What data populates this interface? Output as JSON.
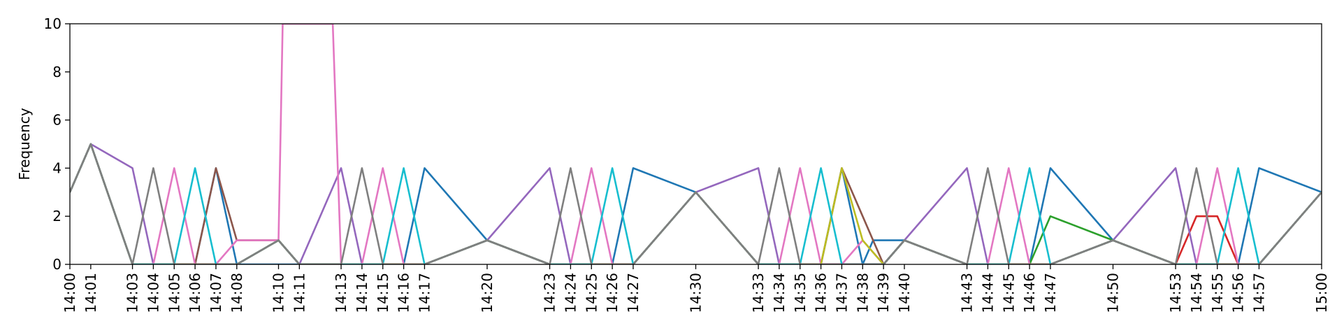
{
  "chart_data": {
    "type": "line",
    "title": "",
    "xlabel": "",
    "ylabel": "Frequency",
    "ylim": [
      0,
      10
    ],
    "y_ticks": [
      0,
      2,
      4,
      6,
      8,
      10
    ],
    "x_range": [
      "14:00",
      "15:00"
    ],
    "x_ticks": [
      "14:00",
      "14:01",
      "14:03",
      "14:04",
      "14:05",
      "14:06",
      "14:07",
      "14:08",
      "14:10",
      "14:11",
      "14:13",
      "14:14",
      "14:15",
      "14:16",
      "14:17",
      "14:20",
      "14:23",
      "14:24",
      "14:25",
      "14:26",
      "14:27",
      "14:30",
      "14:33",
      "14:34",
      "14:35",
      "14:36",
      "14:37",
      "14:38",
      "14:39",
      "14:40",
      "14:43",
      "14:44",
      "14:45",
      "14:46",
      "14:47",
      "14:50",
      "14:53",
      "14:54",
      "14:55",
      "14:56",
      "14:57",
      "15:00"
    ],
    "grid": false,
    "legend": "none",
    "series": [
      {
        "color": "#1f77b4",
        "x": [
          "14:00",
          "14:01",
          "14:03",
          "14:04",
          "14:05",
          "14:06",
          "14:07",
          "14:08",
          "14:10",
          "14:11",
          "14:13",
          "14:14",
          "14:15",
          "14:16",
          "14:17",
          "14:20",
          "14:23",
          "14:24",
          "14:25",
          "14:26",
          "14:27",
          "14:30",
          "14:33",
          "14:34",
          "14:35",
          "14:36",
          "14:37",
          "14:38",
          "14:38.5",
          "14:39",
          "14:40",
          "14:43",
          "14:44",
          "14:45",
          "14:46",
          "14:47",
          "14:50",
          "14:53",
          "14:54",
          "14:55",
          "14:56",
          "14:57",
          "15:00"
        ],
        "y": [
          3,
          5,
          0,
          0,
          0,
          0,
          4,
          0,
          0,
          0,
          0,
          0,
          0,
          0,
          4,
          1,
          0,
          0,
          0,
          0,
          4,
          3,
          0,
          0,
          0,
          0,
          4,
          0,
          1,
          1,
          1,
          0,
          0,
          0,
          0,
          4,
          1,
          0,
          0,
          0,
          0,
          4,
          3
        ]
      },
      {
        "color": "#ff7f0e",
        "x": [
          "14:00",
          "14:01",
          "14:03",
          "14:04",
          "14:05",
          "14:06",
          "14:07",
          "14:08",
          "14:10",
          "14:11",
          "14:13",
          "14:14",
          "14:15",
          "14:16",
          "14:17",
          "14:20",
          "14:23",
          "14:24",
          "14:25",
          "14:26",
          "14:27",
          "14:30",
          "14:33",
          "14:34",
          "14:35",
          "14:36",
          "14:37",
          "14:38",
          "14:39",
          "14:40",
          "14:43",
          "14:44",
          "14:45",
          "14:46",
          "14:47",
          "14:50",
          "14:53",
          "14:54",
          "14:55",
          "14:56",
          "14:57",
          "15:00"
        ],
        "y": [
          3,
          5,
          0,
          0,
          0,
          0,
          0,
          0,
          1,
          0,
          0,
          0,
          0,
          0,
          0,
          1,
          0,
          0,
          0,
          0,
          0,
          3,
          0,
          0,
          0,
          0,
          0,
          0,
          0,
          1,
          0,
          0,
          0,
          0,
          0,
          1,
          0,
          0,
          0,
          0,
          0,
          3
        ]
      },
      {
        "color": "#2ca02c",
        "x": [
          "14:00",
          "14:01",
          "14:03",
          "14:04",
          "14:05",
          "14:06",
          "14:07",
          "14:08",
          "14:10",
          "14:11",
          "14:13",
          "14:14",
          "14:15",
          "14:16",
          "14:17",
          "14:20",
          "14:23",
          "14:24",
          "14:25",
          "14:26",
          "14:27",
          "14:30",
          "14:33",
          "14:34",
          "14:35",
          "14:36",
          "14:37",
          "14:38",
          "14:39",
          "14:40",
          "14:43",
          "14:44",
          "14:45",
          "14:46",
          "14:47",
          "14:50",
          "14:53",
          "14:54",
          "14:55",
          "14:56",
          "14:57",
          "15:00"
        ],
        "y": [
          3,
          5,
          0,
          0,
          0,
          0,
          0,
          0,
          1,
          0,
          0,
          0,
          0,
          0,
          0,
          1,
          0,
          0,
          0,
          0,
          0,
          3,
          0,
          0,
          0,
          0,
          0,
          0,
          0,
          1,
          0,
          0,
          0,
          0,
          2,
          1,
          0,
          0,
          0,
          0,
          0,
          3
        ]
      },
      {
        "color": "#d62728",
        "x": [
          "14:00",
          "14:01",
          "14:03",
          "14:04",
          "14:05",
          "14:06",
          "14:07",
          "14:08",
          "14:10",
          "14:11",
          "14:13",
          "14:14",
          "14:15",
          "14:16",
          "14:17",
          "14:20",
          "14:23",
          "14:24",
          "14:25",
          "14:26",
          "14:27",
          "14:30",
          "14:33",
          "14:34",
          "14:35",
          "14:36",
          "14:37",
          "14:38",
          "14:39",
          "14:40",
          "14:43",
          "14:44",
          "14:45",
          "14:46",
          "14:47",
          "14:50",
          "14:53",
          "14:54",
          "14:55",
          "14:56",
          "14:57",
          "15:00"
        ],
        "y": [
          3,
          5,
          0,
          0,
          0,
          0,
          0,
          0,
          1,
          0,
          0,
          0,
          0,
          0,
          0,
          1,
          0,
          0,
          0,
          0,
          0,
          3,
          0,
          0,
          0,
          0,
          0,
          0,
          0,
          1,
          0,
          0,
          0,
          0,
          0,
          1,
          0,
          2,
          2,
          0,
          0,
          3
        ]
      },
      {
        "color": "#9467bd",
        "x": [
          "14:00",
          "14:01",
          "14:03",
          "14:04",
          "14:05",
          "14:06",
          "14:07",
          "14:08",
          "14:10",
          "14:11",
          "14:13",
          "14:14",
          "14:15",
          "14:16",
          "14:17",
          "14:20",
          "14:23",
          "14:24",
          "14:25",
          "14:26",
          "14:27",
          "14:30",
          "14:33",
          "14:34",
          "14:35",
          "14:36",
          "14:37",
          "14:38",
          "14:39",
          "14:40",
          "14:43",
          "14:44",
          "14:45",
          "14:46",
          "14:47",
          "14:50",
          "14:53",
          "14:54",
          "14:55",
          "14:56",
          "14:57",
          "15:00"
        ],
        "y": [
          3,
          5,
          4,
          0,
          0,
          0,
          0,
          0,
          1,
          0,
          4,
          0,
          0,
          0,
          0,
          1,
          4,
          0,
          0,
          0,
          0,
          3,
          4,
          0,
          0,
          0,
          0,
          0,
          0,
          1,
          4,
          0,
          0,
          0,
          0,
          1,
          4,
          0,
          0,
          0,
          0,
          3
        ]
      },
      {
        "color": "#8c564b",
        "x": [
          "14:00",
          "14:01",
          "14:03",
          "14:04",
          "14:05",
          "14:06",
          "14:07",
          "14:08",
          "14:10",
          "14:11",
          "14:13",
          "14:14",
          "14:15",
          "14:16",
          "14:17",
          "14:20",
          "14:23",
          "14:24",
          "14:25",
          "14:26",
          "14:27",
          "14:30",
          "14:33",
          "14:34",
          "14:35",
          "14:36",
          "14:37",
          "14:38",
          "14:39",
          "14:40",
          "14:43",
          "14:44",
          "14:45",
          "14:46",
          "14:47",
          "14:50",
          "14:53",
          "14:54",
          "14:55",
          "14:56",
          "14:57",
          "15:00"
        ],
        "y": [
          3,
          5,
          0,
          0,
          0,
          0,
          4,
          1,
          1,
          0,
          0,
          0,
          0,
          0,
          0,
          1,
          0,
          0,
          0,
          0,
          0,
          3,
          0,
          0,
          0,
          0,
          4,
          2,
          0,
          1,
          0,
          0,
          0,
          0,
          0,
          1,
          0,
          0,
          0,
          0,
          0,
          3
        ]
      },
      {
        "color": "#e377c2",
        "x": [
          "14:00",
          "14:01",
          "14:03",
          "14:04",
          "14:05",
          "14:06",
          "14:07",
          "14:08",
          "14:10",
          "14:10.2",
          "14:12.6",
          "14:13",
          "14:14",
          "14:15",
          "14:16",
          "14:17",
          "14:20",
          "14:23",
          "14:24",
          "14:25",
          "14:26",
          "14:27",
          "14:30",
          "14:33",
          "14:34",
          "14:35",
          "14:36",
          "14:37",
          "14:38",
          "14:39",
          "14:40",
          "14:43",
          "14:44",
          "14:45",
          "14:46",
          "14:47",
          "14:50",
          "14:53",
          "14:54",
          "14:55",
          "14:56",
          "14:57",
          "15:00"
        ],
        "y": [
          3,
          5,
          0,
          0,
          4,
          0,
          0,
          1,
          1,
          10,
          10,
          0,
          0,
          4,
          0,
          0,
          1,
          0,
          0,
          4,
          0,
          0,
          3,
          0,
          0,
          4,
          0,
          0,
          1,
          0,
          1,
          0,
          0,
          4,
          0,
          0,
          1,
          0,
          0,
          4,
          0,
          0,
          3
        ]
      },
      {
        "color": "#bcbd22",
        "x": [
          "14:00",
          "14:01",
          "14:03",
          "14:04",
          "14:05",
          "14:06",
          "14:07",
          "14:08",
          "14:10",
          "14:11",
          "14:13",
          "14:14",
          "14:15",
          "14:16",
          "14:17",
          "14:20",
          "14:23",
          "14:24",
          "14:25",
          "14:26",
          "14:27",
          "14:30",
          "14:33",
          "14:34",
          "14:35",
          "14:36",
          "14:37",
          "14:38",
          "14:39",
          "14:40",
          "14:43",
          "14:44",
          "14:45",
          "14:46",
          "14:47",
          "14:50",
          "14:53",
          "14:54",
          "14:55",
          "14:56",
          "14:57",
          "15:00"
        ],
        "y": [
          3,
          5,
          0,
          0,
          0,
          0,
          0,
          0,
          1,
          0,
          0,
          0,
          0,
          0,
          0,
          1,
          0,
          0,
          0,
          0,
          0,
          3,
          0,
          0,
          0,
          0,
          4,
          1,
          0,
          1,
          0,
          0,
          0,
          0,
          0,
          1,
          0,
          0,
          0,
          0,
          0,
          3
        ]
      },
      {
        "color": "#17becf",
        "x": [
          "14:00",
          "14:01",
          "14:03",
          "14:04",
          "14:05",
          "14:06",
          "14:07",
          "14:08",
          "14:10",
          "14:11",
          "14:13",
          "14:14",
          "14:15",
          "14:16",
          "14:17",
          "14:20",
          "14:23",
          "14:24",
          "14:25",
          "14:26",
          "14:27",
          "14:30",
          "14:33",
          "14:34",
          "14:35",
          "14:36",
          "14:37",
          "14:38",
          "14:39",
          "14:40",
          "14:43",
          "14:44",
          "14:45",
          "14:46",
          "14:47",
          "14:50",
          "14:53",
          "14:54",
          "14:55",
          "14:56",
          "14:57",
          "15:00"
        ],
        "y": [
          3,
          5,
          0,
          0,
          0,
          4,
          0,
          0,
          1,
          0,
          0,
          0,
          0,
          4,
          0,
          1,
          0,
          0,
          0,
          4,
          0,
          3,
          0,
          0,
          0,
          4,
          0,
          0,
          0,
          1,
          0,
          0,
          0,
          4,
          0,
          1,
          0,
          0,
          0,
          4,
          0,
          3
        ]
      },
      {
        "color": "#7f7f7f",
        "x": [
          "14:00",
          "14:01",
          "14:03",
          "14:04",
          "14:05",
          "14:06",
          "14:07",
          "14:08",
          "14:10",
          "14:11",
          "14:13",
          "14:14",
          "14:15",
          "14:16",
          "14:17",
          "14:20",
          "14:23",
          "14:24",
          "14:25",
          "14:26",
          "14:27",
          "14:30",
          "14:33",
          "14:34",
          "14:35",
          "14:36",
          "14:37",
          "14:38",
          "14:39",
          "14:40",
          "14:43",
          "14:44",
          "14:45",
          "14:46",
          "14:47",
          "14:50",
          "14:53",
          "14:54",
          "14:55",
          "14:56",
          "14:57",
          "15:00"
        ],
        "y": [
          3,
          5,
          0,
          4,
          0,
          0,
          0,
          0,
          1,
          0,
          0,
          4,
          0,
          0,
          0,
          1,
          0,
          4,
          0,
          0,
          0,
          3,
          0,
          4,
          0,
          0,
          0,
          0,
          0,
          1,
          0,
          4,
          0,
          0,
          0,
          1,
          0,
          4,
          0,
          0,
          0,
          3
        ]
      }
    ]
  }
}
